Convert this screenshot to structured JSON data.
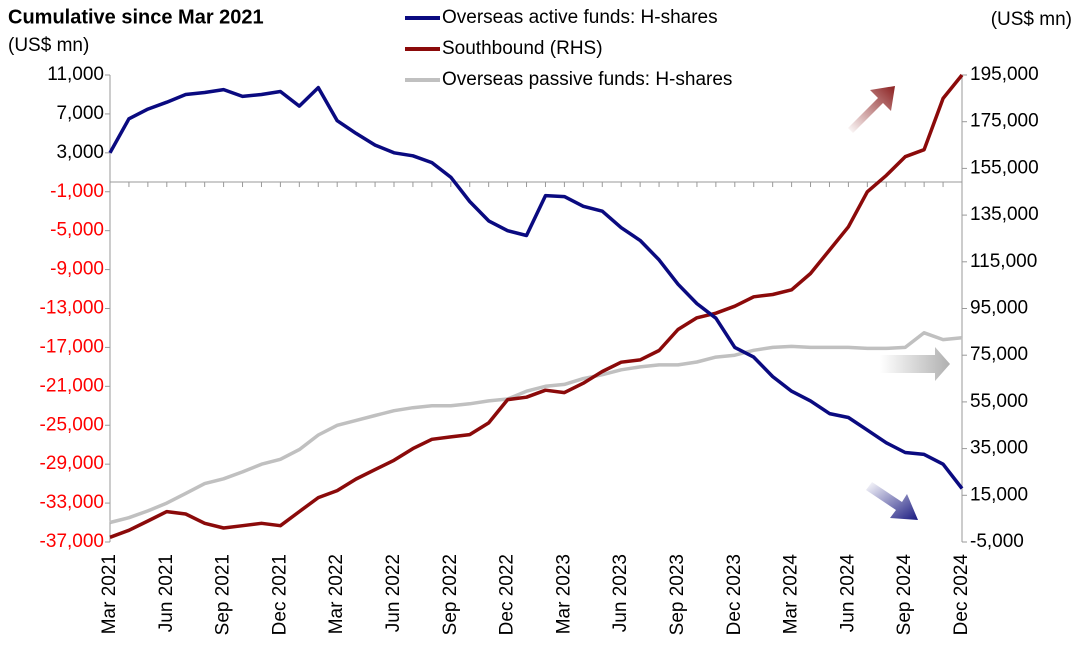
{
  "chart_data": {
    "type": "line",
    "title": "Cumulative since Mar 2021",
    "y_label": "(US$ mn)",
    "y2_label": "(US$ mn)",
    "categories": [
      "Mar 2021",
      null,
      null,
      "Jun 2021",
      null,
      null,
      "Sep 2021",
      null,
      null,
      "Dec 2021",
      null,
      null,
      "Mar 2022",
      null,
      null,
      "Jun 2022",
      null,
      null,
      "Sep 2022",
      null,
      null,
      "Dec 2022",
      null,
      null,
      "Mar 2023",
      null,
      null,
      "Jun 2023",
      null,
      null,
      "Sep 2023",
      null,
      null,
      "Dec 2023",
      null,
      null,
      "Mar 2024",
      null,
      null,
      "Jun 2024",
      null,
      null,
      "Sep 2024",
      null,
      null,
      "Dec 2024"
    ],
    "series": [
      {
        "name": "Overseas active funds: H-shares",
        "color": "#0a0a80",
        "axis": "y",
        "values": [
          3000,
          6500,
          7500,
          8200,
          9000,
          9200,
          9500,
          8800,
          9000,
          9300,
          7800,
          9700,
          6300,
          5000,
          3800,
          3000,
          2700,
          2000,
          500,
          -2000,
          -4000,
          -5000,
          -5500,
          -1400,
          -1500,
          -2500,
          -3000,
          -4700,
          -6000,
          -8000,
          -10500,
          -12500,
          -14000,
          -17000,
          -18000,
          -20000,
          -21500,
          -22500,
          -23800,
          -24200,
          -25500,
          -26800,
          -27800,
          -28000,
          -29000,
          -31500
        ]
      },
      {
        "name": "Southbound (RHS)",
        "color": "#8b0a0a",
        "axis": "y2",
        "values": [
          -3000,
          0,
          4000,
          8000,
          7000,
          3000,
          1000,
          2000,
          3000,
          2000,
          8000,
          14000,
          17000,
          22000,
          26000,
          30000,
          35000,
          39000,
          40000,
          41000,
          46000,
          56000,
          57000,
          60000,
          59000,
          63000,
          68000,
          72000,
          73000,
          77000,
          86000,
          91000,
          93000,
          96000,
          100000,
          101000,
          103000,
          110000,
          120000,
          130000,
          145000,
          152000,
          160000,
          163000,
          185000,
          195000
        ]
      },
      {
        "name": "Overseas passive funds: H-shares",
        "color": "#c0c0c0",
        "axis": "y",
        "values": [
          -35000,
          -34500,
          -33800,
          -33000,
          -32000,
          -31000,
          -30500,
          -29800,
          -29000,
          -28500,
          -27500,
          -26000,
          -25000,
          -24500,
          -24000,
          -23500,
          -23200,
          -23000,
          -23000,
          -22800,
          -22500,
          -22300,
          -21500,
          -21000,
          -20800,
          -20200,
          -19800,
          -19300,
          -19000,
          -18800,
          -18800,
          -18500,
          -18000,
          -17800,
          -17300,
          -17000,
          -16900,
          -17000,
          -17000,
          -17000,
          -17100,
          -17100,
          -17000,
          -15500,
          -16200,
          -16000
        ]
      }
    ],
    "ylim": [
      -37000,
      11000
    ],
    "yticks": [
      {
        "value": -37000,
        "label": "-37,000"
      },
      {
        "value": -33000,
        "label": "-33,000"
      },
      {
        "value": -29000,
        "label": "-29,000"
      },
      {
        "value": -25000,
        "label": "-25,000"
      },
      {
        "value": -21000,
        "label": "-21,000"
      },
      {
        "value": -17000,
        "label": "-17,000"
      },
      {
        "value": -13000,
        "label": "-13,000"
      },
      {
        "value": -9000,
        "label": "-9,000"
      },
      {
        "value": -5000,
        "label": "-5,000"
      },
      {
        "value": -1000,
        "label": "-1,000"
      },
      {
        "value": 3000,
        "label": "3,000"
      },
      {
        "value": 7000,
        "label": "7,000"
      },
      {
        "value": 11000,
        "label": "11,000"
      }
    ],
    "y2lim": [
      -5000,
      195000
    ],
    "y2ticks": [
      {
        "value": -5000,
        "label": "-5,000"
      },
      {
        "value": 15000,
        "label": "15,000"
      },
      {
        "value": 35000,
        "label": "35,000"
      },
      {
        "value": 55000,
        "label": "55,000"
      },
      {
        "value": 75000,
        "label": "75,000"
      },
      {
        "value": 95000,
        "label": "95,000"
      },
      {
        "value": 115000,
        "label": "115,000"
      },
      {
        "value": 135000,
        "label": "135,000"
      },
      {
        "value": 155000,
        "label": "155,000"
      },
      {
        "value": 175000,
        "label": "175,000"
      },
      {
        "value": 195000,
        "label": "195,000"
      }
    ],
    "negative_tick_color": "#ff0000",
    "grid": false
  }
}
